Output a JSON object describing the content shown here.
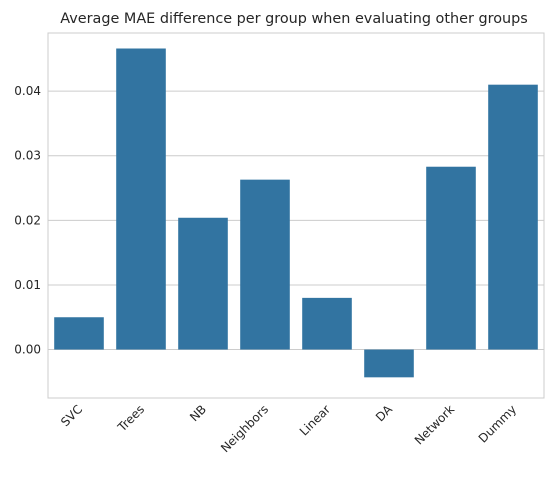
{
  "chart_data": {
    "type": "bar",
    "title": "Average MAE difference per group when evaluating other groups",
    "xlabel": "",
    "ylabel": "",
    "categories": [
      "SVC",
      "Trees",
      "NB",
      "Neighbors",
      "Linear",
      "DA",
      "Network",
      "Dummy"
    ],
    "values": [
      0.005,
      0.0466,
      0.0204,
      0.0263,
      0.008,
      -0.0043,
      0.0283,
      0.041
    ],
    "ylim": [
      -0.0075,
      0.049
    ],
    "yticks": [
      0.0,
      0.01,
      0.02,
      0.03,
      0.04
    ],
    "ytick_labels": [
      "0.00",
      "0.01",
      "0.02",
      "0.03",
      "0.04"
    ],
    "grid": "horizontal",
    "legend": "none",
    "colors": {
      "bar": "#3274a1",
      "grid": "#cccccc",
      "axes_edge": "#cccccc",
      "text": "#262626"
    }
  }
}
